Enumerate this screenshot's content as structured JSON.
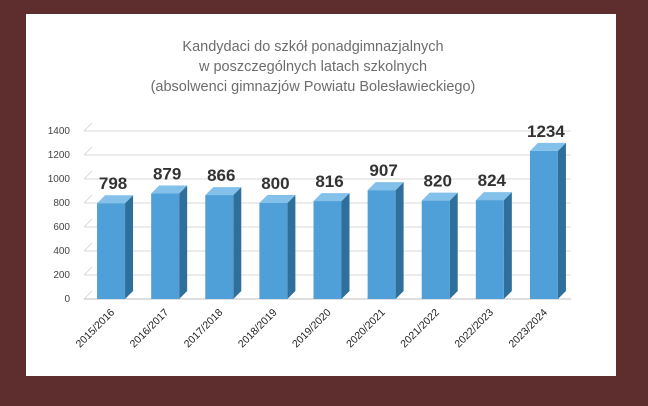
{
  "chart_data": {
    "type": "bar",
    "title_lines": [
      "Kandydaci do szkół ponadgimnazjalnych",
      "w poszczególnych latach szkolnych",
      "(absolwenci gimnazjów Powiatu Bolesławieckiego)"
    ],
    "categories": [
      "2015/2016",
      "2016/2017",
      "2017/2018",
      "2018/2019",
      "2019/2020",
      "2020/2021",
      "2021/2022",
      "2022/2023",
      "2023/2024"
    ],
    "values": [
      798,
      879,
      866,
      800,
      816,
      907,
      820,
      824,
      1234
    ],
    "ylim": [
      0,
      1400
    ],
    "yticks": [
      0,
      200,
      400,
      600,
      800,
      1000,
      1200,
      1400
    ],
    "grid": true,
    "legend": "none",
    "style": "3d-column",
    "colors": {
      "bar_front": "#4f9fd8",
      "bar_side": "#2f6f9c",
      "bar_top": "#84c1ea",
      "grid": "#d9d9d9",
      "frame_border": "#5e2e2e"
    }
  }
}
